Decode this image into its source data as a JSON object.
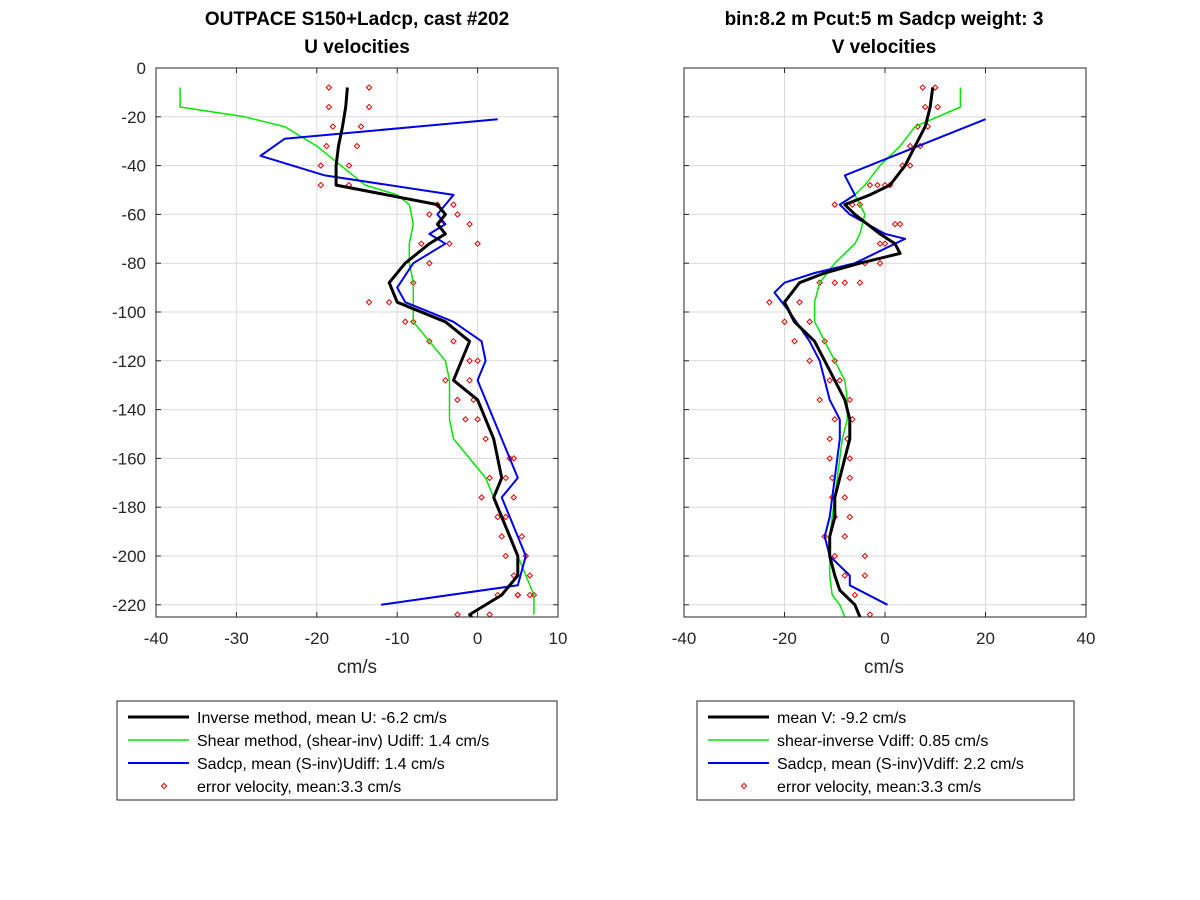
{
  "colors": {
    "inverse": "#000000",
    "shear": "#00e600",
    "sadcp": "#0000e6",
    "error": "#e60000",
    "grid": "#dadada",
    "axis": "#262626"
  },
  "chart_data": [
    {
      "type": "line",
      "title": "OUTPACE S150+Ladcp, cast #202",
      "subtitle": "U velocities",
      "xlabel": "cm/s",
      "ylabel": "",
      "xlim": [
        -40,
        10
      ],
      "ylim": [
        -225,
        0
      ],
      "xticks": [
        -40,
        -30,
        -20,
        -10,
        0,
        10
      ],
      "yticks": [
        0,
        -20,
        -40,
        -60,
        -80,
        -100,
        -120,
        -140,
        -160,
        -180,
        -200,
        -220
      ],
      "grid": true,
      "legend_placement": "below",
      "series": [
        {
          "key": "inverse",
          "name": "Inverse method, mean U:  -6.2 cm/s",
          "style": "thick-line",
          "x": [
            -16.2,
            -16.4,
            -16.8,
            -17.3,
            -17.6,
            -17.6,
            -5,
            -4,
            -5,
            -4,
            -6,
            -9,
            -11,
            -10,
            -4,
            -1,
            -2,
            -3,
            0,
            2,
            3,
            2,
            3,
            4,
            5,
            5,
            3,
            -1,
            -0.5
          ],
          "y": [
            -8,
            -16,
            -24,
            -32,
            -40,
            -48,
            -56,
            -60,
            -64,
            -68,
            -72,
            -80,
            -88,
            -96,
            -104,
            -112,
            -120,
            -128,
            -136,
            -152,
            -168,
            -176,
            -184,
            -192,
            -200,
            -208,
            -216,
            -224,
            -226
          ]
        },
        {
          "key": "shear",
          "name": "Shear method, (shear-inv)  Udiff:  1.4 cm/s",
          "style": "line",
          "x": [
            -37,
            -37,
            -29,
            -24,
            -20,
            -17,
            -14,
            -10,
            -8.5,
            -8,
            -8.5,
            -8.5,
            -8,
            -8,
            -8,
            -6,
            -4,
            -3.5,
            -3.5,
            -3.5,
            -3,
            -1,
            1,
            2,
            3,
            4,
            5,
            6,
            7,
            7
          ],
          "y": [
            -8,
            -16,
            -20,
            -24,
            -32,
            -40,
            -48,
            -52,
            -56,
            -64,
            -72,
            -80,
            -88,
            -96,
            -104,
            -112,
            -120,
            -128,
            -136,
            -144,
            -152,
            -160,
            -168,
            -176,
            -184,
            -192,
            -200,
            -208,
            -216,
            -224
          ]
        },
        {
          "key": "sadcp",
          "name": "Sadcp, mean (S-inv)Udiff: 1.4 cm/s",
          "style": "line",
          "x": [
            2.5,
            -24,
            -27,
            -19,
            -3,
            -5,
            -4,
            -6,
            -4,
            -8,
            -10,
            -9,
            -3,
            0.5,
            1,
            0,
            1,
            2,
            4,
            5,
            3,
            4,
            5,
            6,
            5,
            -12
          ],
          "y": [
            -21,
            -29,
            -36,
            -44,
            -52,
            -60,
            -64,
            -68,
            -72,
            -80,
            -90,
            -96,
            -104,
            -112,
            -120,
            -128,
            -136,
            -144,
            -160,
            -168,
            -176,
            -184,
            -192,
            -200,
            -212,
            -220
          ]
        },
        {
          "key": "error",
          "name": "error velocity, mean:3.3 cm/s",
          "style": "markers",
          "x": [
            -18.5,
            -13.5,
            -18.5,
            -13.5,
            -18,
            -14.5,
            -18.8,
            -15,
            -19.5,
            -16,
            -19.5,
            -16,
            -3,
            -5,
            -6,
            -2.5,
            -4.5,
            -1,
            -7,
            -3.5,
            0,
            -6,
            -8,
            -13.5,
            -11,
            -9,
            -8,
            -3,
            -6,
            -1,
            0,
            -4,
            -1,
            -2.5,
            -0.5,
            0,
            -1.5,
            1,
            4,
            4.5,
            3.5,
            1.5,
            4.5,
            0.5,
            3.5,
            2.5,
            5.5,
            3,
            6,
            3.5,
            6.5,
            4.5,
            7,
            5,
            6.5,
            5,
            2.5,
            -2.5,
            1.5
          ],
          "y": [
            -8,
            -8,
            -16,
            -16,
            -24,
            -24,
            -32,
            -32,
            -40,
            -40,
            -48,
            -48,
            -56,
            -56,
            -60,
            -60,
            -64,
            -64,
            -72,
            -72,
            -72,
            -80,
            -88,
            -96,
            -96,
            -104,
            -104,
            -112,
            -112,
            -120,
            -120,
            -128,
            -128,
            -136,
            -136,
            -144,
            -144,
            -152,
            -160,
            -160,
            -168,
            -168,
            -176,
            -176,
            -184,
            -184,
            -192,
            -192,
            -200,
            -200,
            -208,
            -208,
            -216,
            -216,
            -216,
            -216,
            -216,
            -224,
            -224
          ]
        }
      ]
    },
    {
      "type": "line",
      "title": "bin:8.2 m  Pcut:5 m  Sadcp weight: 3",
      "subtitle": "V velocities",
      "xlabel": "cm/s",
      "ylabel": "",
      "xlim": [
        -40,
        40
      ],
      "ylim": [
        -225,
        0
      ],
      "xticks": [
        -40,
        -20,
        0,
        20,
        40
      ],
      "yticks": [
        0,
        -20,
        -40,
        -60,
        -80,
        -100,
        -120,
        -140,
        -160,
        -180,
        -200,
        -220
      ],
      "grid": true,
      "legend_placement": "below",
      "series": [
        {
          "key": "inverse",
          "name": "mean V:  -9.2 cm/s",
          "style": "thick-line",
          "x": [
            9.5,
            9,
            8,
            6,
            4,
            1,
            -3,
            -8,
            -6,
            -1,
            2,
            3,
            -5,
            -12,
            -17,
            -20,
            -18,
            -14,
            -12,
            -10,
            -8,
            -7,
            -7,
            -8,
            -9,
            -10,
            -10,
            -11,
            -11,
            -10,
            -9,
            -8,
            -6,
            -5
          ],
          "y": [
            -8,
            -16,
            -24,
            -32,
            -40,
            -48,
            -52,
            -56,
            -60,
            -68,
            -72,
            -76,
            -80,
            -84,
            -88,
            -96,
            -104,
            -112,
            -120,
            -128,
            -136,
            -144,
            -152,
            -160,
            -168,
            -176,
            -184,
            -192,
            -200,
            -208,
            -214,
            -216,
            -220,
            -225
          ]
        },
        {
          "key": "shear",
          "name": "shear-inverse Vdiff:  0.85 cm/s",
          "style": "line",
          "x": [
            15,
            15,
            6,
            3,
            -1,
            -4,
            -6,
            -5,
            -4,
            -4.5,
            -5,
            -6,
            -10,
            -13,
            -14,
            -14,
            -12,
            -10,
            -8,
            -7.5,
            -7.5,
            -8.5,
            -9,
            -9.5,
            -10,
            -10.5,
            -11,
            -11,
            -11,
            -10.5,
            -9,
            -8
          ],
          "y": [
            -8,
            -16,
            -24,
            -32,
            -40,
            -48,
            -52,
            -56,
            -60,
            -64,
            -68,
            -72,
            -80,
            -88,
            -96,
            -104,
            -112,
            -120,
            -128,
            -136,
            -144,
            -152,
            -160,
            -168,
            -176,
            -184,
            -192,
            -200,
            -208,
            -216,
            -220,
            -225
          ]
        },
        {
          "key": "sadcp",
          "name": "Sadcp, mean (S-inv)Vdiff: 2.2 cm/s",
          "style": "line",
          "x": [
            20,
            -8,
            -6,
            -9,
            -7,
            0,
            4,
            -6,
            -14,
            -20,
            -22,
            -19,
            -15,
            -13,
            -11,
            -9,
            -9,
            -10,
            -11,
            -12,
            -11,
            -7,
            -7,
            0.5
          ],
          "y": [
            -21,
            -44,
            -52,
            -56,
            -60,
            -68,
            -70,
            -80,
            -84,
            -88,
            -92,
            -100,
            -112,
            -120,
            -136,
            -144,
            -152,
            -168,
            -184,
            -192,
            -200,
            -208,
            -212,
            -220
          ]
        },
        {
          "key": "error",
          "name": "error velocity, mean:3.3 cm/s",
          "style": "markers",
          "x": [
            7.5,
            10,
            8,
            10.5,
            6.5,
            8.5,
            5,
            7,
            3.5,
            5,
            -1.5,
            1,
            -3,
            0,
            -10,
            -6.5,
            -5,
            2,
            3,
            -1,
            0,
            -4,
            -1,
            -8,
            -5,
            -13,
            -10,
            -23,
            -17,
            -20,
            -15,
            -18,
            -12,
            -15,
            -10,
            -11,
            -9,
            -13,
            -7,
            -10,
            -6.5,
            -11,
            -7.5,
            -11,
            -7,
            -10.5,
            -7,
            -10.5,
            -8,
            -10,
            -7,
            -12,
            -8,
            -10,
            -4,
            -8,
            -4,
            -6,
            -3
          ],
          "y": [
            -8,
            -8,
            -16,
            -16,
            -24,
            -24,
            -32,
            -32,
            -40,
            -40,
            -48,
            -48,
            -48,
            -48,
            -56,
            -56,
            -56,
            -64,
            -64,
            -72,
            -72,
            -80,
            -80,
            -88,
            -88,
            -88,
            -88,
            -96,
            -96,
            -104,
            -104,
            -112,
            -112,
            -120,
            -120,
            -128,
            -128,
            -136,
            -136,
            -144,
            -144,
            -152,
            -152,
            -160,
            -160,
            -168,
            -168,
            -176,
            -176,
            -184,
            -184,
            -192,
            -192,
            -200,
            -200,
            -208,
            -208,
            -216,
            -224
          ]
        }
      ]
    }
  ]
}
